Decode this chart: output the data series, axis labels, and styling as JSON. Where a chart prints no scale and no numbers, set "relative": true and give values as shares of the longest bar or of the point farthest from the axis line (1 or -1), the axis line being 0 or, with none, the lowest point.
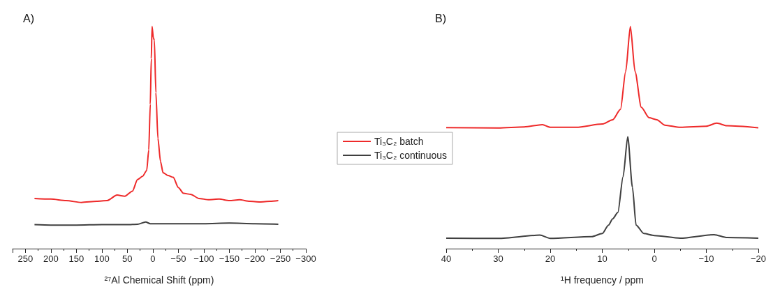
{
  "chart_data": [
    {
      "type": "line",
      "title": "A)",
      "xlabel": "²⁷Al Chemical Shift (ppm)",
      "relative": true,
      "xlim": [
        275,
        -300
      ],
      "xticks": [
        250,
        200,
        150,
        100,
        50,
        0,
        -50,
        -100,
        -150,
        -200,
        -250,
        -300
      ],
      "legend": "right",
      "marker": "none",
      "grid": false,
      "series": [
        {
          "name": "Ti₃C₂ batch",
          "color": "#ee2a2a",
          "x": [
            232,
            200,
            170,
            140,
            110,
            90,
            70,
            55,
            40,
            30,
            20,
            12,
            8,
            5,
            3,
            1.5,
            -1,
            -3,
            -6,
            -10,
            -15,
            -20,
            -30,
            -40,
            -50,
            -60,
            -75,
            -90,
            -110,
            -130,
            -150,
            -170,
            -190,
            -210,
            -230,
            -246
          ],
          "values": [
            0.226,
            0.223,
            0.216,
            0.208,
            0.213,
            0.216,
            0.241,
            0.236,
            0.259,
            0.311,
            0.326,
            0.352,
            0.444,
            0.65,
            0.856,
            1.0,
            0.949,
            0.938,
            0.702,
            0.496,
            0.393,
            0.342,
            0.329,
            0.321,
            0.275,
            0.249,
            0.244,
            0.226,
            0.22,
            0.223,
            0.216,
            0.22,
            0.213,
            0.21,
            0.213,
            0.216
          ]
        },
        {
          "name": "Ti₃C₂ continuous",
          "color": "#3f3f3f",
          "x": [
            232,
            200,
            150,
            100,
            50,
            30,
            14,
            5,
            -50,
            -100,
            -150,
            -200,
            -246
          ],
          "values": [
            0.108,
            0.106,
            0.106,
            0.108,
            0.108,
            0.11,
            0.12,
            0.112,
            0.112,
            0.112,
            0.115,
            0.112,
            0.11
          ]
        }
      ]
    },
    {
      "type": "line",
      "title": "B)",
      "xlabel": "¹H frequency / ppm",
      "relative": true,
      "xlim": [
        40,
        -20
      ],
      "xticks": [
        40,
        30,
        20,
        10,
        0,
        -10,
        -20
      ],
      "marker": "none",
      "grid": false,
      "series": [
        {
          "color": "#ee2a2a",
          "x": [
            40,
            30,
            25,
            21.5,
            20,
            15,
            10,
            8,
            6.5,
            5.5,
            4.6,
            3.7,
            2.5,
            1,
            -0.5,
            -2,
            -5,
            -10,
            -12,
            -14,
            -20
          ],
          "values": [
            0.545,
            0.543,
            0.548,
            0.558,
            0.546,
            0.546,
            0.561,
            0.58,
            0.627,
            0.797,
            1.0,
            0.797,
            0.636,
            0.589,
            0.58,
            0.556,
            0.546,
            0.551,
            0.565,
            0.553,
            0.544
          ]
        },
        {
          "color": "#3f3f3f",
          "x": [
            40,
            30,
            22,
            20,
            12,
            10,
            8.8,
            8,
            7,
            6,
            5.1,
            4.2,
            3.5,
            2,
            0,
            -5,
            -11.5,
            -14,
            -20
          ],
          "values": [
            0.047,
            0.046,
            0.061,
            0.046,
            0.054,
            0.068,
            0.106,
            0.134,
            0.163,
            0.324,
            0.504,
            0.276,
            0.106,
            0.068,
            0.059,
            0.047,
            0.063,
            0.05,
            0.047
          ]
        }
      ]
    }
  ]
}
